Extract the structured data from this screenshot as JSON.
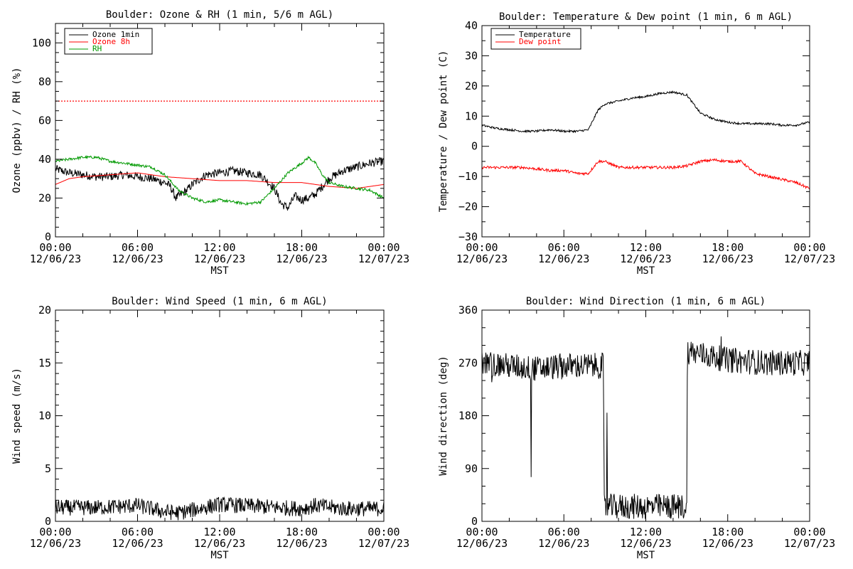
{
  "chart_data": [
    {
      "type": "line",
      "title": "Boulder: Ozone & RH (1 min, 5/6 m AGL)",
      "xlabel": "MST",
      "ylabel": "Ozone (ppbv) / RH (%)",
      "ylim": [
        0,
        110
      ],
      "yticks": [
        "0",
        "20",
        "40",
        "60",
        "80",
        "100"
      ],
      "ytick_values": [
        0,
        20,
        40,
        60,
        80,
        100
      ],
      "xlim_hours": [
        0,
        24
      ],
      "xticks": [
        {
          "h": 0,
          "time": "00:00",
          "date": "12/06/23"
        },
        {
          "h": 6,
          "time": "06:00",
          "date": "12/06/23"
        },
        {
          "h": 12,
          "time": "12:00",
          "date": "12/06/23"
        },
        {
          "h": 18,
          "time": "18:00",
          "date": "12/06/23"
        },
        {
          "h": 24,
          "time": "00:00",
          "date": "12/07/23"
        }
      ],
      "legend": "top-left",
      "reference_line": {
        "y": 70,
        "color": "#ff0000",
        "style": "dotted"
      },
      "series": [
        {
          "name": "Ozone 1min",
          "color": "#000000",
          "noise": 2.2,
          "x": [
            0,
            1,
            2,
            3,
            4,
            5,
            6,
            7,
            8,
            8.4,
            8.8,
            9,
            9.6,
            10,
            11,
            12,
            13,
            14,
            15,
            16,
            16.5,
            17,
            17.5,
            18,
            18.5,
            19,
            20,
            21,
            22,
            23,
            24
          ],
          "y": [
            35,
            33,
            32,
            31,
            31,
            32,
            31,
            30,
            28,
            26,
            20,
            21,
            24,
            27,
            32,
            33,
            34,
            33,
            32,
            25,
            17,
            15,
            21,
            19,
            20,
            22,
            30,
            34,
            36,
            38,
            39
          ]
        },
        {
          "name": "Ozone 8h",
          "color": "#ff0000",
          "noise": 0,
          "x": [
            0,
            1,
            2,
            4,
            6,
            8,
            10,
            12,
            14,
            16,
            18,
            20,
            22,
            24
          ],
          "y": [
            27,
            30,
            31,
            32,
            33,
            31,
            30,
            29,
            29,
            28,
            28,
            26,
            25,
            27
          ]
        },
        {
          "name": "RH",
          "color": "#009900",
          "noise": 0.7,
          "x": [
            0,
            1,
            2,
            3,
            4,
            5,
            6,
            7,
            8,
            8.5,
            9,
            10,
            11,
            12,
            13,
            14,
            15,
            16,
            17,
            18,
            18.5,
            19,
            19.5,
            20,
            21,
            22,
            23,
            24
          ],
          "y": [
            39,
            40,
            41,
            41,
            39,
            38,
            37,
            36,
            32,
            28,
            24,
            20,
            18,
            19,
            18,
            17,
            18,
            25,
            33,
            38,
            41,
            38,
            32,
            28,
            26,
            25,
            24,
            20
          ]
        }
      ]
    },
    {
      "type": "line",
      "title": "Boulder: Temperature & Dew point (1 min, 6 m AGL)",
      "xlabel": "MST",
      "ylabel": "Temperature / Dew point (C)",
      "ylim": [
        -30,
        40
      ],
      "yticks": [
        "−30",
        "−20",
        "−10",
        "0",
        "10",
        "20",
        "30",
        "40"
      ],
      "ytick_values": [
        -30,
        -20,
        -10,
        0,
        10,
        20,
        30,
        40
      ],
      "xlim_hours": [
        0,
        24
      ],
      "xticks": [
        {
          "h": 0,
          "time": "00:00",
          "date": "12/06/23"
        },
        {
          "h": 6,
          "time": "06:00",
          "date": "12/06/23"
        },
        {
          "h": 12,
          "time": "12:00",
          "date": "12/06/23"
        },
        {
          "h": 18,
          "time": "18:00",
          "date": "12/06/23"
        },
        {
          "h": 24,
          "time": "00:00",
          "date": "12/07/23"
        }
      ],
      "legend": "top-left",
      "series": [
        {
          "name": "Temperature",
          "color": "#000000",
          "noise": 0.35,
          "x": [
            0,
            1,
            2,
            3,
            4,
            5,
            6,
            7,
            7.8,
            8.5,
            9,
            10,
            11,
            12,
            13,
            14,
            15,
            16,
            17,
            18,
            19,
            20,
            21,
            22,
            23,
            24
          ],
          "y": [
            7,
            6,
            5.5,
            5,
            5,
            5.5,
            5,
            5,
            5.5,
            12,
            14,
            15,
            16,
            16.5,
            17.5,
            18,
            17,
            11,
            9,
            8,
            7.5,
            7.5,
            7.5,
            7,
            7,
            8
          ]
        },
        {
          "name": "Dew point",
          "color": "#ff0000",
          "noise": 0.45,
          "x": [
            0,
            1,
            2,
            3,
            4,
            5,
            6,
            7,
            7.8,
            8.5,
            9,
            10,
            11,
            12,
            13,
            14,
            15,
            16,
            17,
            18,
            19,
            20,
            21,
            22,
            23,
            24
          ],
          "y": [
            -7,
            -7,
            -7,
            -7,
            -7.5,
            -8,
            -8,
            -9,
            -9,
            -5,
            -5,
            -7,
            -7,
            -7,
            -7,
            -7,
            -6.5,
            -5,
            -4.5,
            -5,
            -5,
            -9,
            -10,
            -11,
            -12,
            -14
          ]
        }
      ]
    },
    {
      "type": "line",
      "title": "Boulder: Wind Speed (1 min, 6 m AGL)",
      "xlabel": "MST",
      "ylabel": "Wind speed (m/s)",
      "ylim": [
        0,
        20
      ],
      "yticks": [
        "0",
        "5",
        "10",
        "15",
        "20"
      ],
      "ytick_values": [
        0,
        5,
        10,
        15,
        20
      ],
      "xlim_hours": [
        0,
        24
      ],
      "xticks": [
        {
          "h": 0,
          "time": "00:00",
          "date": "12/06/23"
        },
        {
          "h": 6,
          "time": "06:00",
          "date": "12/06/23"
        },
        {
          "h": 12,
          "time": "12:00",
          "date": "12/06/23"
        },
        {
          "h": 18,
          "time": "18:00",
          "date": "12/06/23"
        },
        {
          "h": 24,
          "time": "00:00",
          "date": "12/07/23"
        }
      ],
      "series": [
        {
          "color": "#000000",
          "noise": 0.75,
          "x": [
            0,
            3,
            6,
            8,
            9,
            12,
            15,
            18,
            19,
            21,
            24
          ],
          "y": [
            1.3,
            1.3,
            1.5,
            0.9,
            0.8,
            1.6,
            1.4,
            1.2,
            1.5,
            1.2,
            1.2
          ]
        }
      ]
    },
    {
      "type": "line",
      "title": "Boulder: Wind Direction (1 min, 6 m AGL)",
      "xlabel": "MST",
      "ylabel": "Wind direction (deg)",
      "ylim": [
        0,
        360
      ],
      "yticks": [
        "0",
        "90",
        "180",
        "270",
        "360"
      ],
      "ytick_values": [
        0,
        90,
        180,
        270,
        360
      ],
      "xlim_hours": [
        0,
        24
      ],
      "xticks": [
        {
          "h": 0,
          "time": "00:00",
          "date": "12/06/23"
        },
        {
          "h": 6,
          "time": "06:00",
          "date": "12/06/23"
        },
        {
          "h": 12,
          "time": "12:00",
          "date": "12/06/23"
        },
        {
          "h": 18,
          "time": "18:00",
          "date": "12/06/23"
        },
        {
          "h": 24,
          "time": "00:00",
          "date": "12/07/23"
        }
      ],
      "series": [
        {
          "color": "#000000",
          "noise": 22,
          "x": [
            0,
            2,
            4,
            6,
            8,
            8.9,
            8.95,
            10,
            12,
            14,
            15,
            15.05,
            18,
            21,
            24
          ],
          "y": [
            270,
            265,
            260,
            265,
            265,
            265,
            25,
            25,
            25,
            25,
            25,
            290,
            275,
            270,
            270
          ]
        }
      ]
    }
  ]
}
